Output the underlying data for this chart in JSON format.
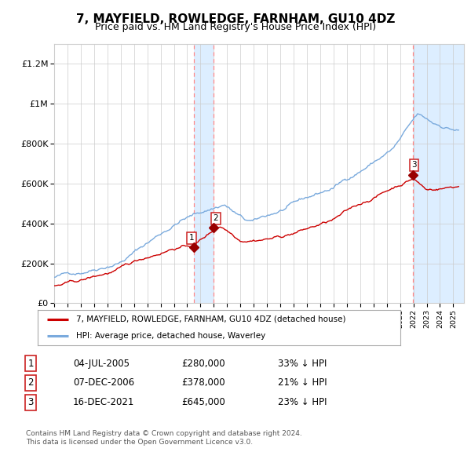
{
  "title": "7, MAYFIELD, ROWLEDGE, FARNHAM, GU10 4DZ",
  "subtitle": "Price paid vs. HM Land Registry's House Price Index (HPI)",
  "title_fontsize": 11,
  "subtitle_fontsize": 9,
  "ylabel_ticks": [
    "£0",
    "£200K",
    "£400K",
    "£600K",
    "£800K",
    "£1M",
    "£1.2M"
  ],
  "ytick_values": [
    0,
    200000,
    400000,
    600000,
    800000,
    1000000,
    1200000
  ],
  "xlim_start": 1995.0,
  "xlim_end": 2025.8,
  "ylim": [
    0,
    1300000
  ],
  "red_line_color": "#cc0000",
  "blue_line_color": "#7aaadd",
  "sale_marker_color": "#990000",
  "vspan1_x1": 2005.5,
  "vspan1_x2": 2007.0,
  "vspan2_x1": 2021.95,
  "vspan2_x2": 2025.8,
  "vline1_x": 2005.5,
  "vline2_x": 2007.0,
  "vline3_x": 2021.95,
  "sale1_x": 2005.5,
  "sale1_y": 280000,
  "sale2_x": 2007.0,
  "sale2_y": 378000,
  "sale3_x": 2021.95,
  "sale3_y": 645000,
  "label1": "1",
  "label2": "2",
  "label3": "3",
  "legend_red": "7, MAYFIELD, ROWLEDGE, FARNHAM, GU10 4DZ (detached house)",
  "legend_blue": "HPI: Average price, detached house, Waverley",
  "table_rows": [
    [
      "1",
      "04-JUL-2005",
      "£280,000",
      "33% ↓ HPI"
    ],
    [
      "2",
      "07-DEC-2006",
      "£378,000",
      "21% ↓ HPI"
    ],
    [
      "3",
      "16-DEC-2021",
      "£645,000",
      "23% ↓ HPI"
    ]
  ],
  "footnote1": "Contains HM Land Registry data © Crown copyright and database right 2024.",
  "footnote2": "This data is licensed under the Open Government Licence v3.0.",
  "background_color": "#ffffff",
  "grid_color": "#cccccc",
  "vspan_color": "#ddeeff",
  "vline_color": "#ff8888"
}
